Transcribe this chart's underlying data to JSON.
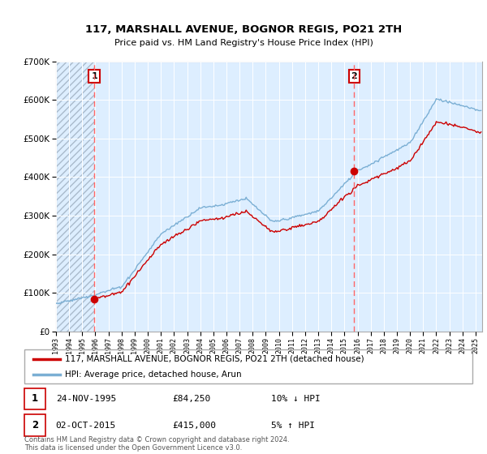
{
  "title": "117, MARSHALL AVENUE, BOGNOR REGIS, PO21 2TH",
  "subtitle": "Price paid vs. HM Land Registry's House Price Index (HPI)",
  "legend_line1": "117, MARSHALL AVENUE, BOGNOR REGIS, PO21 2TH (detached house)",
  "legend_line2": "HPI: Average price, detached house, Arun",
  "annotation1_date": "24-NOV-1995",
  "annotation1_price": "£84,250",
  "annotation1_hpi": "10% ↓ HPI",
  "annotation2_date": "02-OCT-2015",
  "annotation2_price": "£415,000",
  "annotation2_hpi": "5% ↑ HPI",
  "footer": "Contains HM Land Registry data © Crown copyright and database right 2024.\nThis data is licensed under the Open Government Licence v3.0.",
  "sale1_year": 1995.92,
  "sale1_price": 84250,
  "sale2_year": 2015.75,
  "sale2_price": 415000,
  "line_color_red": "#cc0000",
  "line_color_blue": "#7bafd4",
  "bg_color": "#ddeeff",
  "hatch_color": "#aabbcc",
  "vline_color": "#ff6666",
  "dot_color": "#cc0000",
  "ylim_max": 700000,
  "ylim_min": 0,
  "xlim_min": 1993,
  "xlim_max": 2025.5
}
